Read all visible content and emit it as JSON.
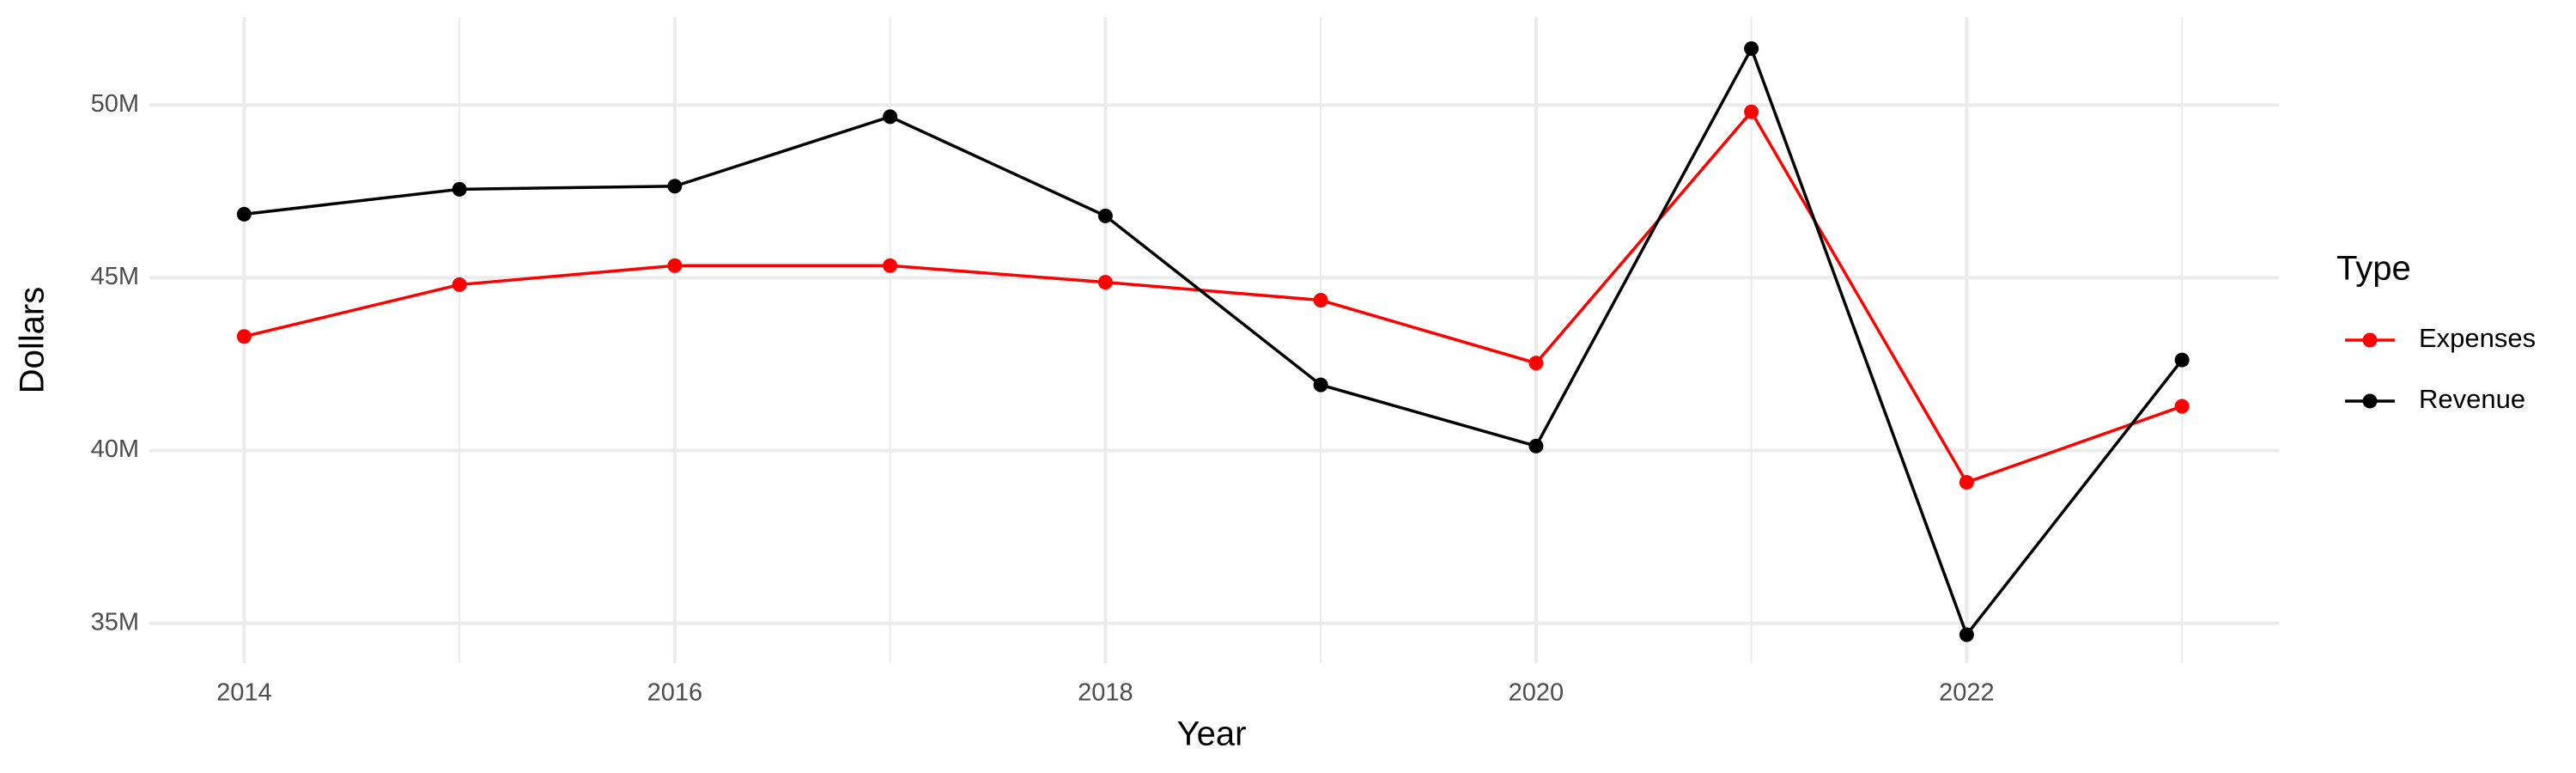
{
  "chart_data": {
    "type": "line",
    "x_label": "Year",
    "y_label": "Dollars",
    "legend_title": "Type",
    "x": [
      2014,
      2015,
      2016,
      2017,
      2018,
      2019,
      2020,
      2021,
      2022,
      2023
    ],
    "series": [
      {
        "name": "Expenses",
        "color": "#ff0000",
        "values": [
          43300000,
          44800000,
          45350000,
          45350000,
          44870000,
          44350000,
          42530000,
          49800000,
          39080000,
          41280000
        ]
      },
      {
        "name": "Revenue",
        "color": "#000000",
        "values": [
          46840000,
          47560000,
          47650000,
          49660000,
          46790000,
          41900000,
          40130000,
          51630000,
          34670000,
          42620000
        ]
      }
    ],
    "xlim": [
      2013.56,
      2023.45
    ],
    "xticks": [
      2014,
      2016,
      2018,
      2020,
      2022
    ],
    "ylim": [
      33850000,
      52540000
    ],
    "yticks": [
      {
        "value": 35000000,
        "label": "35M"
      },
      {
        "value": 40000000,
        "label": "40M"
      },
      {
        "value": 45000000,
        "label": "45M"
      },
      {
        "value": 50000000,
        "label": "50M"
      }
    ],
    "grid": true,
    "legend": "right"
  }
}
